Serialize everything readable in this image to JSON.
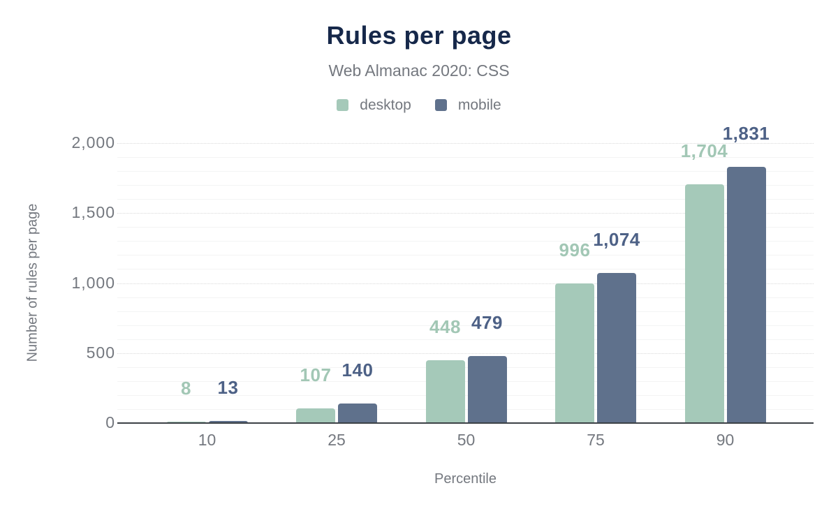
{
  "title": "Rules per page",
  "subtitle": "Web Almanac 2020: CSS",
  "colors": {
    "title": "#16284a",
    "muted_text": "#74787f",
    "axis_line": "#3c4146",
    "grid_major": "#d9d9d9",
    "grid_minor": "#f3f4f4",
    "background": "#ffffff"
  },
  "chart_data": {
    "type": "bar",
    "title": "Rules per page",
    "subtitle": "Web Almanac 2020: CSS",
    "categories": [
      "10",
      "25",
      "50",
      "75",
      "90"
    ],
    "series": [
      {
        "name": "desktop",
        "color": "#a5c9b9",
        "label_color": "#a2c7b5",
        "values": [
          8,
          107,
          448,
          996,
          1704
        ],
        "value_labels": [
          "8",
          "107",
          "448",
          "996",
          "1,704"
        ]
      },
      {
        "name": "mobile",
        "color": "#5f718c",
        "label_color": "#4d6186",
        "values": [
          13,
          140,
          479,
          1074,
          1831
        ],
        "value_labels": [
          "13",
          "140",
          "479",
          "1,074",
          "1,831"
        ]
      }
    ],
    "xlabel": "Percentile",
    "ylabel": "Number of rules per page",
    "ylim": [
      0,
      2000
    ],
    "yticks": [
      0,
      500,
      1000,
      1500,
      2000
    ],
    "ytick_labels": [
      "0",
      "500",
      "1,000",
      "1,500",
      "2,000"
    ],
    "minor_grid_step": 100,
    "legend_position": "top",
    "grid": "horizontal: minor solid every 100, major dotted every 500"
  }
}
